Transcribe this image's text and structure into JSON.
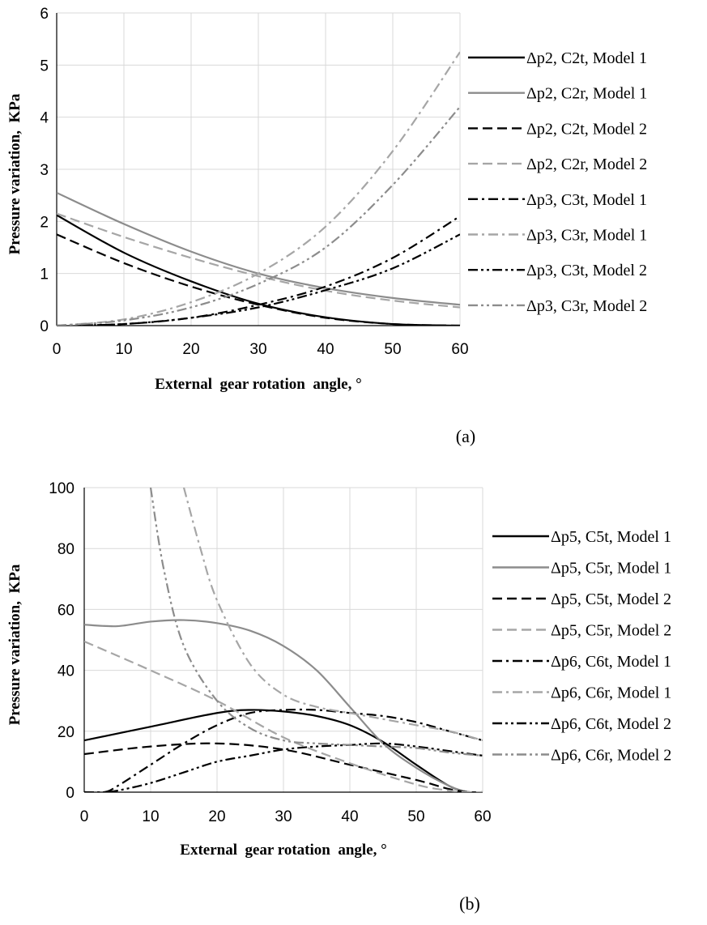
{
  "colors": {
    "black": "#000000",
    "gray": "#8c8c8c",
    "light_gray": "#a6a6a6",
    "grid": "#d9d9d9"
  },
  "chart_data": [
    {
      "type": "line",
      "panel_label": "(a)",
      "xlabel": "External  gear rotation  angle, °",
      "ylabel": "Pressure variation,  KPa",
      "xlim": [
        0,
        60
      ],
      "ylim": [
        0,
        6
      ],
      "xticks": [
        0,
        10,
        20,
        30,
        40,
        50,
        60
      ],
      "yticks": [
        0,
        1,
        2,
        3,
        4,
        5,
        6
      ],
      "grid": true,
      "legend_position": "right",
      "series": [
        {
          "name": "Δp2, C2t, Model 1",
          "color": "#000000",
          "dash": "solid",
          "x": [
            0,
            10,
            20,
            30,
            40,
            50,
            60
          ],
          "y": [
            2.12,
            1.4,
            0.85,
            0.42,
            0.16,
            0.03,
            0.0
          ]
        },
        {
          "name": "Δp2, C2r, Model 1",
          "color": "#8c8c8c",
          "dash": "solid",
          "x": [
            0,
            10,
            20,
            30,
            40,
            50,
            60
          ],
          "y": [
            2.55,
            1.95,
            1.42,
            1.0,
            0.72,
            0.53,
            0.4
          ]
        },
        {
          "name": "Δp2, C2t, Model 2",
          "color": "#000000",
          "dash": "dash",
          "x": [
            0,
            10,
            20,
            30,
            40,
            50,
            60
          ],
          "y": [
            1.75,
            1.2,
            0.75,
            0.4,
            0.15,
            0.03,
            0.0
          ]
        },
        {
          "name": "Δp2, C2r, Model 2",
          "color": "#a6a6a6",
          "dash": "dash",
          "x": [
            0,
            10,
            20,
            30,
            40,
            50,
            60
          ],
          "y": [
            2.15,
            1.7,
            1.3,
            0.95,
            0.67,
            0.48,
            0.35
          ]
        },
        {
          "name": "Δp3, C3t, Model 1",
          "color": "#000000",
          "dash": "dashdot",
          "x": [
            0,
            10,
            20,
            30,
            40,
            50,
            60
          ],
          "y": [
            0.0,
            0.03,
            0.15,
            0.4,
            0.75,
            1.3,
            2.1
          ]
        },
        {
          "name": "Δp3, C3r, Model 1",
          "color": "#a6a6a6",
          "dash": "dashdot",
          "x": [
            0,
            10,
            20,
            30,
            40,
            50,
            60
          ],
          "y": [
            0.0,
            0.12,
            0.45,
            1.0,
            1.9,
            3.35,
            5.25
          ]
        },
        {
          "name": "Δp3, C3t, Model 2",
          "color": "#000000",
          "dash": "dashdotdot",
          "x": [
            0,
            10,
            20,
            30,
            40,
            50,
            60
          ],
          "y": [
            0.0,
            0.03,
            0.15,
            0.35,
            0.68,
            1.1,
            1.75
          ]
        },
        {
          "name": "Δp3, C3r, Model 2",
          "color": "#8c8c8c",
          "dash": "dashdotdot",
          "x": [
            0,
            10,
            20,
            30,
            40,
            50,
            60
          ],
          "y": [
            0.0,
            0.1,
            0.35,
            0.8,
            1.5,
            2.7,
            4.2
          ]
        }
      ]
    },
    {
      "type": "line",
      "panel_label": "(b)",
      "xlabel": "External  gear rotation  angle, °",
      "ylabel": "Pressure variation,  KPa",
      "xlim": [
        0,
        60
      ],
      "ylim": [
        0,
        100
      ],
      "xticks": [
        0,
        10,
        20,
        30,
        40,
        50,
        60
      ],
      "yticks": [
        0,
        20,
        40,
        60,
        80,
        100
      ],
      "grid": true,
      "legend_position": "right",
      "series": [
        {
          "name": "Δp5, C5t, Model 1",
          "color": "#000000",
          "dash": "solid",
          "x": [
            0,
            10,
            20,
            25,
            30,
            35,
            40,
            45,
            50,
            55,
            58,
            60
          ],
          "y": [
            17,
            21.5,
            26,
            27,
            26.5,
            25,
            22,
            16.5,
            9,
            2,
            0,
            0
          ]
        },
        {
          "name": "Δp5, C5r, Model 1",
          "color": "#8c8c8c",
          "dash": "solid",
          "x": [
            0,
            5,
            10,
            15,
            20,
            25,
            30,
            35,
            40,
            45,
            50,
            55,
            58,
            60
          ],
          "y": [
            55,
            54.5,
            56,
            56.5,
            55.5,
            53,
            48,
            40,
            28,
            16,
            8,
            2,
            0,
            0
          ]
        },
        {
          "name": "Δp5, C5t, Model 2",
          "color": "#000000",
          "dash": "dash",
          "x": [
            0,
            10,
            20,
            30,
            40,
            50,
            55,
            58,
            60
          ],
          "y": [
            12.5,
            15,
            16,
            14,
            9,
            4,
            1,
            0,
            0
          ]
        },
        {
          "name": "Δp5, C5r, Model 2",
          "color": "#a6a6a6",
          "dash": "dash",
          "x": [
            0,
            10,
            20,
            30,
            40,
            50,
            55,
            58,
            60
          ],
          "y": [
            49.5,
            40,
            30,
            18,
            9.5,
            2.5,
            0.5,
            0,
            0
          ]
        },
        {
          "name": "Δp6, C6t, Model 1",
          "color": "#000000",
          "dash": "dashdot",
          "x": [
            0,
            3,
            5,
            10,
            15,
            20,
            25,
            30,
            35,
            40,
            45,
            50,
            55,
            60
          ],
          "y": [
            0,
            0,
            2,
            9,
            16,
            22,
            26,
            27,
            27,
            26,
            25,
            23,
            20,
            17
          ]
        },
        {
          "name": "Δp6, C6r, Model 1",
          "color": "#a6a6a6",
          "dash": "dashdot",
          "x": [
            15,
            17.5,
            20,
            25,
            30,
            35,
            40,
            45,
            50,
            55,
            60
          ],
          "y": [
            100,
            80,
            63,
            42,
            32,
            28,
            26,
            24,
            22,
            20,
            17
          ]
        },
        {
          "name": "Δp6, C6t, Model 2",
          "color": "#000000",
          "dash": "dashdotdot",
          "x": [
            0,
            3,
            5,
            10,
            15,
            20,
            25,
            30,
            35,
            40,
            45,
            50,
            55,
            60
          ],
          "y": [
            0,
            0,
            0.5,
            3,
            6.5,
            10,
            12,
            14,
            15,
            15.5,
            16,
            15,
            13.5,
            12
          ]
        },
        {
          "name": "Δp6, C6r, Model 2",
          "color": "#8c8c8c",
          "dash": "dashdotdot",
          "x": [
            10,
            12,
            15,
            20,
            25,
            30,
            35,
            40,
            45,
            50,
            55,
            60
          ],
          "y": [
            100,
            73,
            48,
            30,
            21,
            17,
            16,
            15.5,
            15,
            14.5,
            13,
            12
          ]
        }
      ]
    }
  ]
}
